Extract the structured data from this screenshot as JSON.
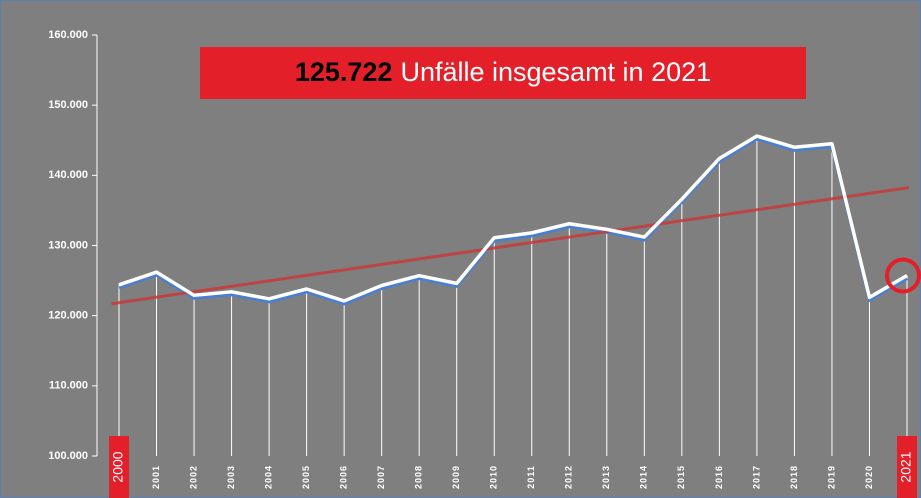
{
  "chart_data": {
    "type": "line",
    "annotation_value": "125.722",
    "annotation_text": "Unfälle insgesamt in 2021",
    "categories": [
      "2000",
      "2001",
      "2002",
      "2003",
      "2004",
      "2005",
      "2006",
      "2007",
      "2008",
      "2009",
      "2010",
      "2011",
      "2012",
      "2013",
      "2014",
      "2015",
      "2016",
      "2017",
      "2018",
      "2019",
      "2020",
      "2021"
    ],
    "series": [
      {
        "color": "#ffffff",
        "shadow": "#4a7fd0",
        "values": [
          124400,
          126200,
          122900,
          123400,
          122400,
          123800,
          122100,
          124300,
          125700,
          124600,
          131100,
          131800,
          133100,
          132300,
          131200,
          136600,
          142400,
          145600,
          144000,
          144500,
          122600,
          125722
        ]
      }
    ],
    "trendline": true,
    "trend_color": "#c8383a",
    "ylim": [
      100000,
      160000
    ],
    "yticks": [
      {
        "value": 100000,
        "label": "100.000"
      },
      {
        "value": 110000,
        "label": "110.000"
      },
      {
        "value": 120000,
        "label": "120.000"
      },
      {
        "value": 130000,
        "label": "130.000"
      },
      {
        "value": 140000,
        "label": "140.000"
      },
      {
        "value": 150000,
        "label": "150.000"
      },
      {
        "value": 160000,
        "label": "160.000"
      }
    ],
    "highlight_color": "#e3202a"
  }
}
